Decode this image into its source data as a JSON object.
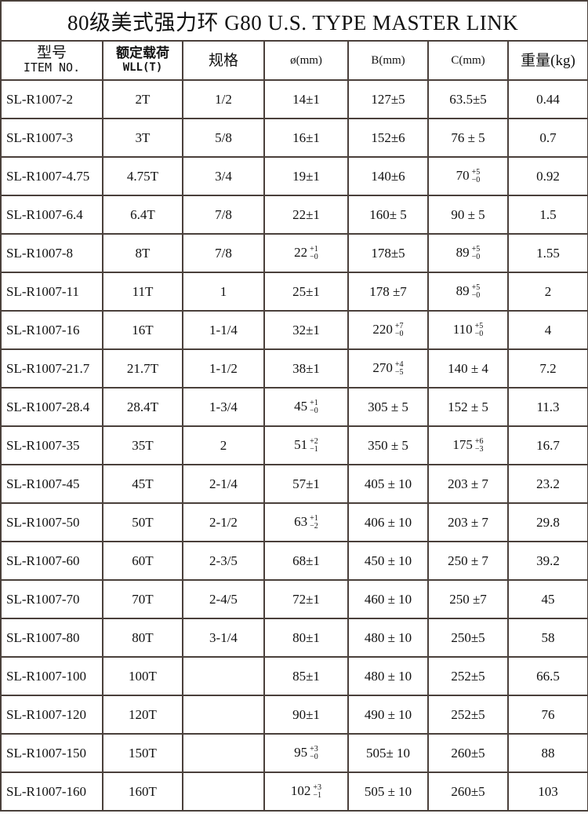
{
  "title": "80级美式强力环 G80 U.S. TYPE MASTER LINK",
  "headers": {
    "item_cn": "型号",
    "item_en": "ITEM NO.",
    "wll_cn": "额定载荷",
    "wll_en": "WLL(T)",
    "spec": "规格",
    "dia": "ø(mm)",
    "b": "B(mm)",
    "c": "C(mm)",
    "weight": "重量(kg)"
  },
  "rows": [
    {
      "item": "SL-R1007-2",
      "wll": "2T",
      "spec": "1/2",
      "dia": {
        "v": "14±1"
      },
      "b": {
        "v": "127±5"
      },
      "c": {
        "v": "63.5±5"
      },
      "weight": "0.44"
    },
    {
      "item": "SL-R1007-3",
      "wll": "3T",
      "spec": "5/8",
      "dia": {
        "v": "16±1"
      },
      "b": {
        "v": "152±6"
      },
      "c": {
        "v": "76 ± 5"
      },
      "weight": "0.7"
    },
    {
      "item": "SL-R1007-4.75",
      "wll": "4.75T",
      "spec": "3/4",
      "dia": {
        "v": "19±1"
      },
      "b": {
        "v": "140±6"
      },
      "c": {
        "v": "70",
        "up": "+5",
        "lo": "−0"
      },
      "weight": "0.92"
    },
    {
      "item": "SL-R1007-6.4",
      "wll": "6.4T",
      "spec": "7/8",
      "dia": {
        "v": "22±1"
      },
      "b": {
        "v": "160± 5"
      },
      "c": {
        "v": "90 ± 5"
      },
      "weight": "1.5"
    },
    {
      "item": "SL-R1007-8",
      "wll": "8T",
      "spec": "7/8",
      "dia": {
        "v": "22",
        "up": "+1",
        "lo": "−0"
      },
      "b": {
        "v": "178±5"
      },
      "c": {
        "v": "89",
        "up": "+5",
        "lo": "−0"
      },
      "weight": "1.55"
    },
    {
      "item": "SL-R1007-11",
      "wll": "11T",
      "spec": "1",
      "dia": {
        "v": "25±1"
      },
      "b": {
        "v": "178   ±7"
      },
      "c": {
        "v": "89",
        "up": "+5",
        "lo": "−0"
      },
      "weight": "2"
    },
    {
      "item": "SL-R1007-16",
      "wll": "16T",
      "spec": "1-1/4",
      "dia": {
        "v": "32±1"
      },
      "b": {
        "v": "220",
        "up": "+7",
        "lo": "−0"
      },
      "c": {
        "v": "110",
        "up": "+5",
        "lo": "−0"
      },
      "weight": "4"
    },
    {
      "item": "SL-R1007-21.7",
      "wll": "21.7T",
      "spec": "1-1/2",
      "dia": {
        "v": "38±1"
      },
      "b": {
        "v": "270",
        "up": "+4",
        "lo": "−5"
      },
      "c": {
        "v": "140 ± 4"
      },
      "weight": "7.2"
    },
    {
      "item": "SL-R1007-28.4",
      "wll": "28.4T",
      "spec": "1-3/4",
      "dia": {
        "v": "45",
        "up": "+1",
        "lo": "−0"
      },
      "b": {
        "v": "305 ± 5"
      },
      "c": {
        "v": "152 ± 5"
      },
      "weight": "11.3"
    },
    {
      "item": "SL-R1007-35",
      "wll": "35T",
      "spec": "2",
      "dia": {
        "v": "51",
        "up": "+2",
        "lo": "−1"
      },
      "b": {
        "v": "350 ± 5"
      },
      "c": {
        "v": "175",
        "up": "+6",
        "lo": "−3"
      },
      "weight": "16.7"
    },
    {
      "item": "SL-R1007-45",
      "wll": "45T",
      "spec": "2-1/4",
      "dia": {
        "v": "57±1"
      },
      "b": {
        "v": "405 ± 10"
      },
      "c": {
        "v": "203 ± 7"
      },
      "weight": "23.2"
    },
    {
      "item": "SL-R1007-50",
      "wll": "50T",
      "spec": "2-1/2",
      "dia": {
        "v": "63",
        "up": "+1",
        "lo": "−2"
      },
      "b": {
        "v": "406 ± 10"
      },
      "c": {
        "v": "203 ± 7"
      },
      "weight": "29.8"
    },
    {
      "item": "SL-R1007-60",
      "wll": "60T",
      "spec": "2-3/5",
      "dia": {
        "v": "68±1"
      },
      "b": {
        "v": "450 ± 10"
      },
      "c": {
        "v": "250 ± 7"
      },
      "weight": "39.2"
    },
    {
      "item": "SL-R1007-70",
      "wll": "70T",
      "spec": "2-4/5",
      "dia": {
        "v": "72±1"
      },
      "b": {
        "v": "460 ± 10"
      },
      "c": {
        "v": "250 ±7"
      },
      "weight": "45"
    },
    {
      "item": "SL-R1007-80",
      "wll": "80T",
      "spec": "3-1/4",
      "dia": {
        "v": "80±1"
      },
      "b": {
        "v": "480 ± 10"
      },
      "c": {
        "v": "250±5"
      },
      "weight": "58"
    },
    {
      "item": "SL-R1007-100",
      "wll": "100T",
      "spec": "",
      "dia": {
        "v": "85±1"
      },
      "b": {
        "v": "480 ± 10"
      },
      "c": {
        "v": "252±5"
      },
      "weight": "66.5"
    },
    {
      "item": "SL-R1007-120",
      "wll": "120T",
      "spec": "",
      "dia": {
        "v": "90±1"
      },
      "b": {
        "v": "490 ± 10"
      },
      "c": {
        "v": "252±5"
      },
      "weight": "76"
    },
    {
      "item": "SL-R1007-150",
      "wll": "150T",
      "spec": "",
      "dia": {
        "v": "95",
        "up": "+3",
        "lo": "−0"
      },
      "b": {
        "v": "505± 10"
      },
      "c": {
        "v": "260±5"
      },
      "weight": "88"
    },
    {
      "item": "SL-R1007-160",
      "wll": "160T",
      "spec": "",
      "dia": {
        "v": "102",
        "up": "+3",
        "lo": "−1"
      },
      "b": {
        "v": "505 ± 10"
      },
      "c": {
        "v": "260±5"
      },
      "weight": "103"
    }
  ]
}
